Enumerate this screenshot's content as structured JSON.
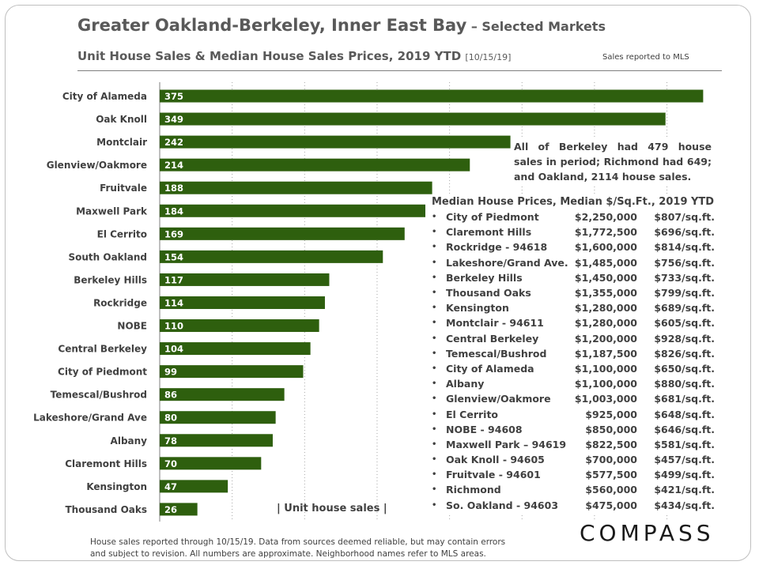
{
  "header": {
    "title": "Greater Oakland-Berkeley, Inner East Bay",
    "title_suffix": " – Selected Markets",
    "subtitle": "Unit House Sales & Median House Sales Prices, 2019 YTD",
    "subtitle_date": "[10/15/19]",
    "mls_note": "Sales reported to MLS"
  },
  "chart_data": {
    "type": "bar",
    "orientation": "horizontal",
    "categories": [
      "City of Alameda",
      "Oak Knoll",
      "Montclair",
      "Glenview/Oakmore",
      "Fruitvale",
      "Maxwell Park",
      "El Cerrito",
      "South Oakland",
      "Berkeley Hills",
      "Rockridge",
      "NOBE",
      "Central Berkeley",
      "City of Piedmont",
      "Temescal/Bushrod",
      "Lakeshore/Grand Ave",
      "Albany",
      "Claremont Hills",
      "Kensington",
      "Thousand Oaks"
    ],
    "values": [
      375,
      349,
      242,
      214,
      188,
      184,
      169,
      154,
      117,
      114,
      110,
      104,
      99,
      86,
      80,
      78,
      70,
      47,
      26
    ],
    "xlabel": "| Unit house sales |",
    "xlim": [
      0,
      380
    ],
    "bar_color": "#2e5f0e",
    "grid": "vertical, dotted"
  },
  "annotation": "All of Berkeley had 479 house sales in period; Richmond had 649; and Oakland, 2114 house sales.",
  "price_table": {
    "title": "Median House Prices, Median $/Sq.Ft., 2019 YTD",
    "rows": [
      {
        "name": "City of Piedmont",
        "price": "$2,250,000",
        "psf": "$807/sq.ft."
      },
      {
        "name": "Claremont Hills",
        "price": "$1,772,500",
        "psf": "$696/sq.ft."
      },
      {
        "name": "Rockridge - 94618",
        "price": "$1,600,000",
        "psf": "$814/sq.ft."
      },
      {
        "name": "Lakeshore/Grand Ave.",
        "price": "$1,485,000",
        "psf": "$756/sq.ft."
      },
      {
        "name": "Berkeley Hills",
        "price": "$1,450,000",
        "psf": "$733/sq.ft."
      },
      {
        "name": "Thousand Oaks",
        "price": "$1,355,000",
        "psf": "$799/sq.ft."
      },
      {
        "name": "Kensington",
        "price": "$1,280,000",
        "psf": "$689/sq.ft."
      },
      {
        "name": "Montclair - 94611",
        "price": "$1,280,000",
        "psf": "$605/sq.ft."
      },
      {
        "name": "Central Berkeley",
        "price": "$1,200,000",
        "psf": "$928/sq.ft."
      },
      {
        "name": "Temescal/Bushrod",
        "price": "$1,187,500",
        "psf": "$826/sq.ft."
      },
      {
        "name": "City of Alameda",
        "price": "$1,100,000",
        "psf": "$650/sq.ft."
      },
      {
        "name": "Albany",
        "price": "$1,100,000",
        "psf": "$880/sq.ft."
      },
      {
        "name": "Glenview/Oakmore",
        "price": "$1,003,000",
        "psf": "$681/sq.ft."
      },
      {
        "name": "El Cerrito",
        "price": "$925,000",
        "psf": "$648/sq.ft."
      },
      {
        "name": "NOBE - 94608",
        "price": "$850,000",
        "psf": "$646/sq.ft."
      },
      {
        "name": "Maxwell Park – 94619",
        "price": "$822,500",
        "psf": "$581/sq.ft."
      },
      {
        "name": "Oak Knoll - 94605",
        "price": "$700,000",
        "psf": "$457/sq.ft."
      },
      {
        "name": "Fruitvale - 94601",
        "price": "$577,500",
        "psf": "$499/sq.ft."
      },
      {
        "name": "Richmond",
        "price": "$560,000",
        "psf": "$421/sq.ft."
      },
      {
        "name": "So. Oakland - 94603",
        "price": "$475,000",
        "psf": "$434/sq.ft."
      }
    ]
  },
  "footnote_line1": "House sales reported through 10/15/19. Data from sources deemed reliable, but may contain errors",
  "footnote_line2": "and subject to revision. All numbers are approximate. Neighborhood names refer to MLS areas.",
  "logo": "COMPASS"
}
